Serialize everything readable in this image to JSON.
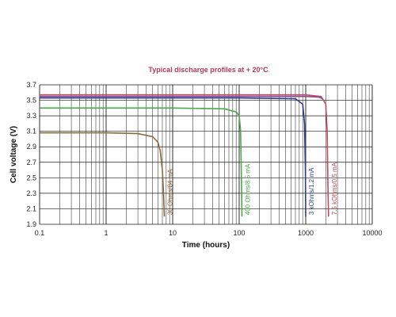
{
  "colors": {
    "title": "#b83a52",
    "grid": "#1a1a1a",
    "background": "#ffffff"
  },
  "chart_data": {
    "type": "line",
    "title": "Typical discharge profiles at + 20°C",
    "xlabel": "Time (hours)",
    "ylabel": "Cell voltage (V)",
    "x_scale": "log",
    "xlim": [
      0.1,
      10000
    ],
    "ylim": [
      1.9,
      3.7
    ],
    "x_ticks": [
      "0.1",
      "1",
      "10",
      "100",
      "1000",
      "10000"
    ],
    "y_ticks": [
      "1.9",
      "2.1",
      "2.3",
      "2.5",
      "2.7",
      "2.9",
      "3.1",
      "3.3",
      "3.5",
      "3.7"
    ],
    "grid": true,
    "series": [
      {
        "name": "30 Ohms/84 mA",
        "color": "#8b6a3a",
        "points": [
          [
            0.1,
            3.08
          ],
          [
            1,
            3.08
          ],
          [
            3,
            3.07
          ],
          [
            5,
            3.03
          ],
          [
            6,
            2.96
          ],
          [
            6.5,
            2.85
          ],
          [
            7,
            2.6
          ],
          [
            7.3,
            2.3
          ],
          [
            7.5,
            2.0
          ]
        ]
      },
      {
        "name": "400 Ohms/8.5 mA",
        "color": "#4aa84a",
        "points": [
          [
            0.1,
            3.4
          ],
          [
            1,
            3.4
          ],
          [
            10,
            3.4
          ],
          [
            60,
            3.39
          ],
          [
            90,
            3.35
          ],
          [
            100,
            3.3
          ],
          [
            105,
            3.1
          ],
          [
            108,
            2.5
          ],
          [
            110,
            2.0
          ]
        ]
      },
      {
        "name": "3 kOhms/1.2 mA",
        "color": "#2c3e8c",
        "points": [
          [
            0.1,
            3.53
          ],
          [
            1,
            3.53
          ],
          [
            10,
            3.53
          ],
          [
            100,
            3.53
          ],
          [
            700,
            3.52
          ],
          [
            900,
            3.45
          ],
          [
            960,
            3.2
          ],
          [
            990,
            2.6
          ],
          [
            1000,
            2.0
          ]
        ]
      },
      {
        "name": "7.5 kOhms/0.5 mA",
        "color": "#c04a5a",
        "points": [
          [
            0.1,
            3.57
          ],
          [
            1,
            3.57
          ],
          [
            10,
            3.57
          ],
          [
            100,
            3.57
          ],
          [
            1000,
            3.57
          ],
          [
            1700,
            3.55
          ],
          [
            2000,
            3.45
          ],
          [
            2100,
            3.1
          ],
          [
            2150,
            2.5
          ],
          [
            2200,
            2.0
          ]
        ]
      },
      {
        "name": "",
        "color": "#8a4aa0",
        "points": [
          [
            0.1,
            3.55
          ],
          [
            1,
            3.55
          ],
          [
            10,
            3.55
          ],
          [
            100,
            3.55
          ],
          [
            1000,
            3.55
          ],
          [
            1600,
            3.54
          ],
          [
            1800,
            3.52
          ]
        ]
      }
    ]
  }
}
